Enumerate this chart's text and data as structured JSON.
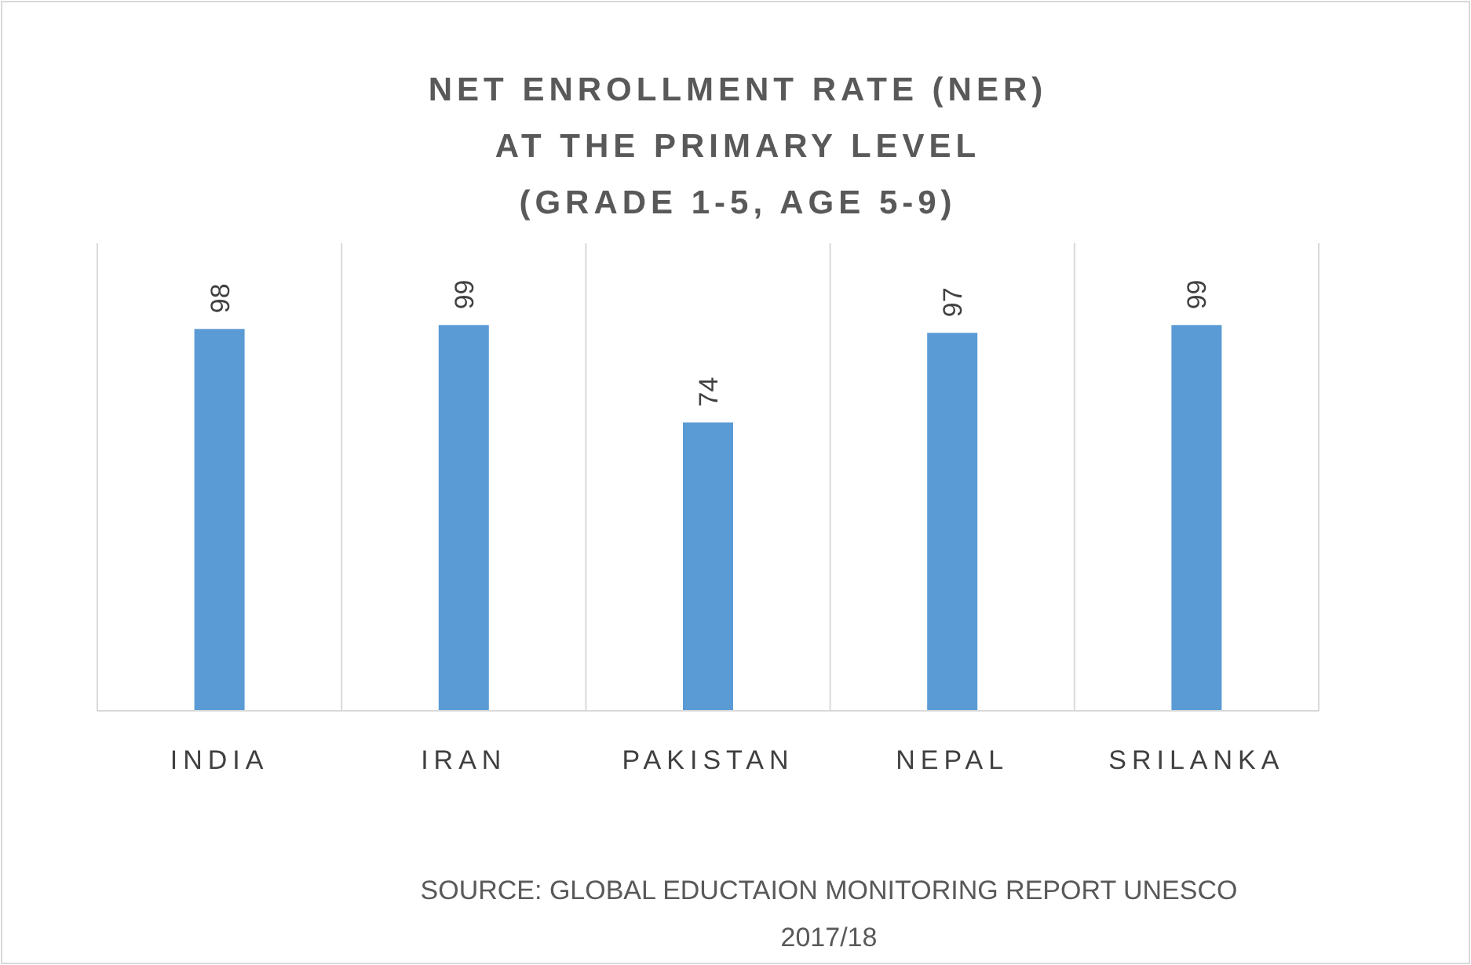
{
  "chart_data": {
    "type": "bar",
    "title": "NET ENROLLMENT RATE (NER) AT THE PRIMARY LEVEL (GRADE 1-5, AGE 5-9)",
    "categories": [
      "INDIA",
      "IRAN",
      "PAKISTAN",
      "NEPAL",
      "SRILANKA"
    ],
    "values": [
      98,
      99,
      74,
      97,
      99
    ],
    "color": "#5b9bd5",
    "ylim": [
      0,
      120
    ],
    "grid": "x",
    "data_labels": true,
    "tick_labels": "x",
    "annotations": [
      "SOURCE: GLOBAL EDUCTAION MONITORING REPORT UNESCO 2017/18"
    ]
  }
}
